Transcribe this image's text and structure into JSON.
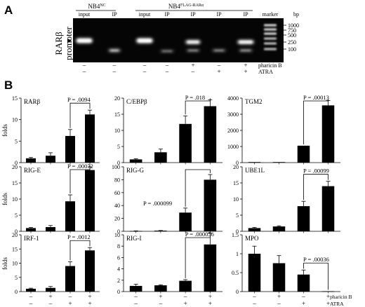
{
  "panel_a": {
    "label": "A",
    "ylabel_line1": "RARβ",
    "ylabel_line2": "promoter",
    "group1": "NB4",
    "group1_sup": "NC",
    "group2": "NB4",
    "group2_sup": "FLAG-RARα",
    "lanes": [
      "input",
      "IP",
      "input",
      "IP",
      "IP",
      "IP",
      "IP",
      "marker"
    ],
    "bp_unit": "bp",
    "markers": [
      "1000",
      "750",
      "500",
      "250",
      "100"
    ],
    "treat_rows": [
      {
        "label": "pharicin B",
        "marks": [
          "–",
          "–",
          "–",
          "–",
          "+",
          "–",
          "+"
        ]
      },
      {
        "label": "ATRA",
        "marks": [
          "–",
          "–",
          "–",
          "–",
          "–",
          "+",
          "+"
        ]
      }
    ]
  },
  "panel_b": {
    "label": "B",
    "ylabel": "folds",
    "row_labels": [
      "pharicin B",
      "ATRA"
    ],
    "row1_marks": [
      "–",
      "+",
      "–",
      "+"
    ],
    "row2_marks": [
      "–",
      "–",
      "+",
      "+"
    ]
  },
  "chart_data": [
    {
      "type": "bar",
      "title": "RARβ",
      "values": [
        1,
        1.6,
        6.2,
        11.2
      ],
      "errors": [
        0.2,
        0.7,
        1.5,
        1.0
      ],
      "ylim": [
        0,
        15
      ],
      "yticks": [
        "0",
        "5",
        "10",
        "15"
      ],
      "annotation": "P = .0094"
    },
    {
      "type": "bar",
      "title": "C/EBPβ",
      "values": [
        1,
        3.2,
        12,
        17.5
      ],
      "errors": [
        0.2,
        1.0,
        2.5,
        2.0
      ],
      "ylim": [
        0,
        20
      ],
      "yticks": [
        "0",
        "5",
        "10",
        "15",
        "20"
      ],
      "annotation": "P = .018"
    },
    {
      "type": "bar",
      "title": "TGM2",
      "values": [
        0,
        0,
        1050,
        3550
      ],
      "errors": [
        0,
        0,
        0,
        300
      ],
      "ylim": [
        0,
        4000
      ],
      "yticks": [
        "0",
        "1000",
        "2000",
        "3000",
        "4000"
      ],
      "annotation": "P = .00013"
    },
    {
      "type": "bar",
      "title": "RIG-E",
      "values": [
        1,
        1.3,
        9.3,
        19
      ],
      "errors": [
        0.2,
        0.5,
        2.0,
        1.0
      ],
      "ylim": [
        0,
        20
      ],
      "yticks": [
        "0",
        "5",
        "10",
        "15",
        "20"
      ],
      "annotation": "P = .00072"
    },
    {
      "type": "bar",
      "title": "RIG-G",
      "values": [
        0.5,
        1,
        29,
        80
      ],
      "errors": [
        0.2,
        0.3,
        7,
        8
      ],
      "ylim": [
        0,
        100
      ],
      "yticks": [
        "0",
        "20",
        "40",
        "60",
        "80",
        "100"
      ],
      "annotation": "P = .000099"
    },
    {
      "type": "bar",
      "title": "UBE1L",
      "values": [
        1,
        1.5,
        7.8,
        14
      ],
      "errors": [
        0.2,
        0.2,
        1.5,
        1.5
      ],
      "ylim": [
        0,
        20
      ],
      "yticks": [
        "0",
        "5",
        "10",
        "15",
        "20"
      ],
      "annotation": "P = .00099"
    },
    {
      "type": "bar",
      "title": "IRF-1",
      "values": [
        1,
        1.3,
        9,
        14.5
      ],
      "errors": [
        0.2,
        0.5,
        1.5,
        1.0
      ],
      "ylim": [
        0,
        20
      ],
      "yticks": [
        "0",
        "5",
        "10",
        "15",
        "20"
      ],
      "annotation": "P = .0012"
    },
    {
      "type": "bar",
      "title": "RIG-I",
      "values": [
        1,
        1.1,
        1.9,
        8.3
      ],
      "errors": [
        0.3,
        0.1,
        0.2,
        2.0
      ],
      "ylim": [
        0,
        10
      ],
      "yticks": [
        "0",
        "2",
        "4",
        "6",
        "8",
        "10"
      ],
      "annotation": "P = .000056"
    },
    {
      "type": "bar",
      "title": "MPO",
      "values": [
        1.0,
        0.75,
        0.45,
        0.01
      ],
      "errors": [
        0.2,
        0.2,
        0.12,
        0
      ],
      "ylim": [
        0,
        1.5
      ],
      "yticks": [
        "0",
        "0.5",
        "1",
        "1.5"
      ],
      "annotation": "P = .00036"
    }
  ]
}
